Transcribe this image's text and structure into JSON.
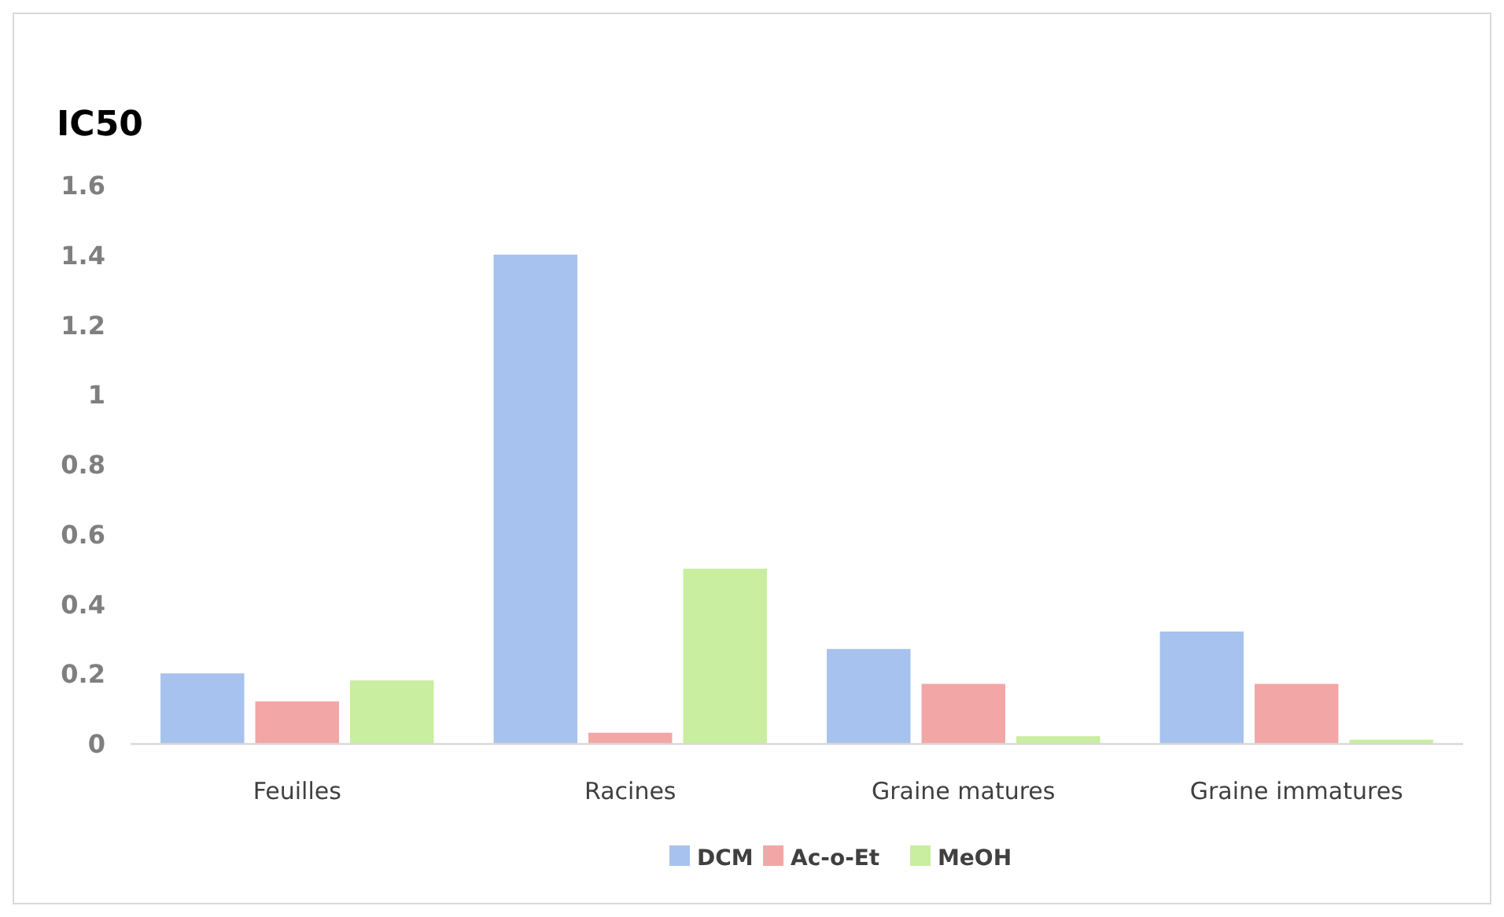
{
  "chart_data": {
    "type": "bar",
    "title": "IC50",
    "categories": [
      "Feuilles",
      "Racines",
      "Graine matures",
      "Graine immatures"
    ],
    "series": [
      {
        "name": "DCM",
        "color": "#a7c2ee",
        "values": [
          0.2,
          1.4,
          0.27,
          0.32
        ]
      },
      {
        "name": "Ac-o-Et",
        "color": "#f2a7a6",
        "values": [
          0.12,
          0.03,
          0.17,
          0.17
        ]
      },
      {
        "name": "MeOH",
        "color": "#c9ee9f",
        "values": [
          0.18,
          0.5,
          0.02,
          0.01
        ]
      }
    ],
    "ylim": [
      0,
      1.6
    ],
    "yticks": [
      0,
      {
        "value": 0.2,
        "label": "0.2"
      },
      {
        "value": 0.4,
        "label": "0.4"
      },
      {
        "value": 0.6,
        "label": "0.6"
      },
      {
        "value": 0.8,
        "label": "0.8"
      },
      1,
      {
        "value": 1.2,
        "label": "1.2"
      },
      {
        "value": 1.4,
        "label": "1.4"
      },
      {
        "value": 1.6,
        "label": "1.6"
      }
    ],
    "grid": false,
    "legend": "bottom"
  }
}
